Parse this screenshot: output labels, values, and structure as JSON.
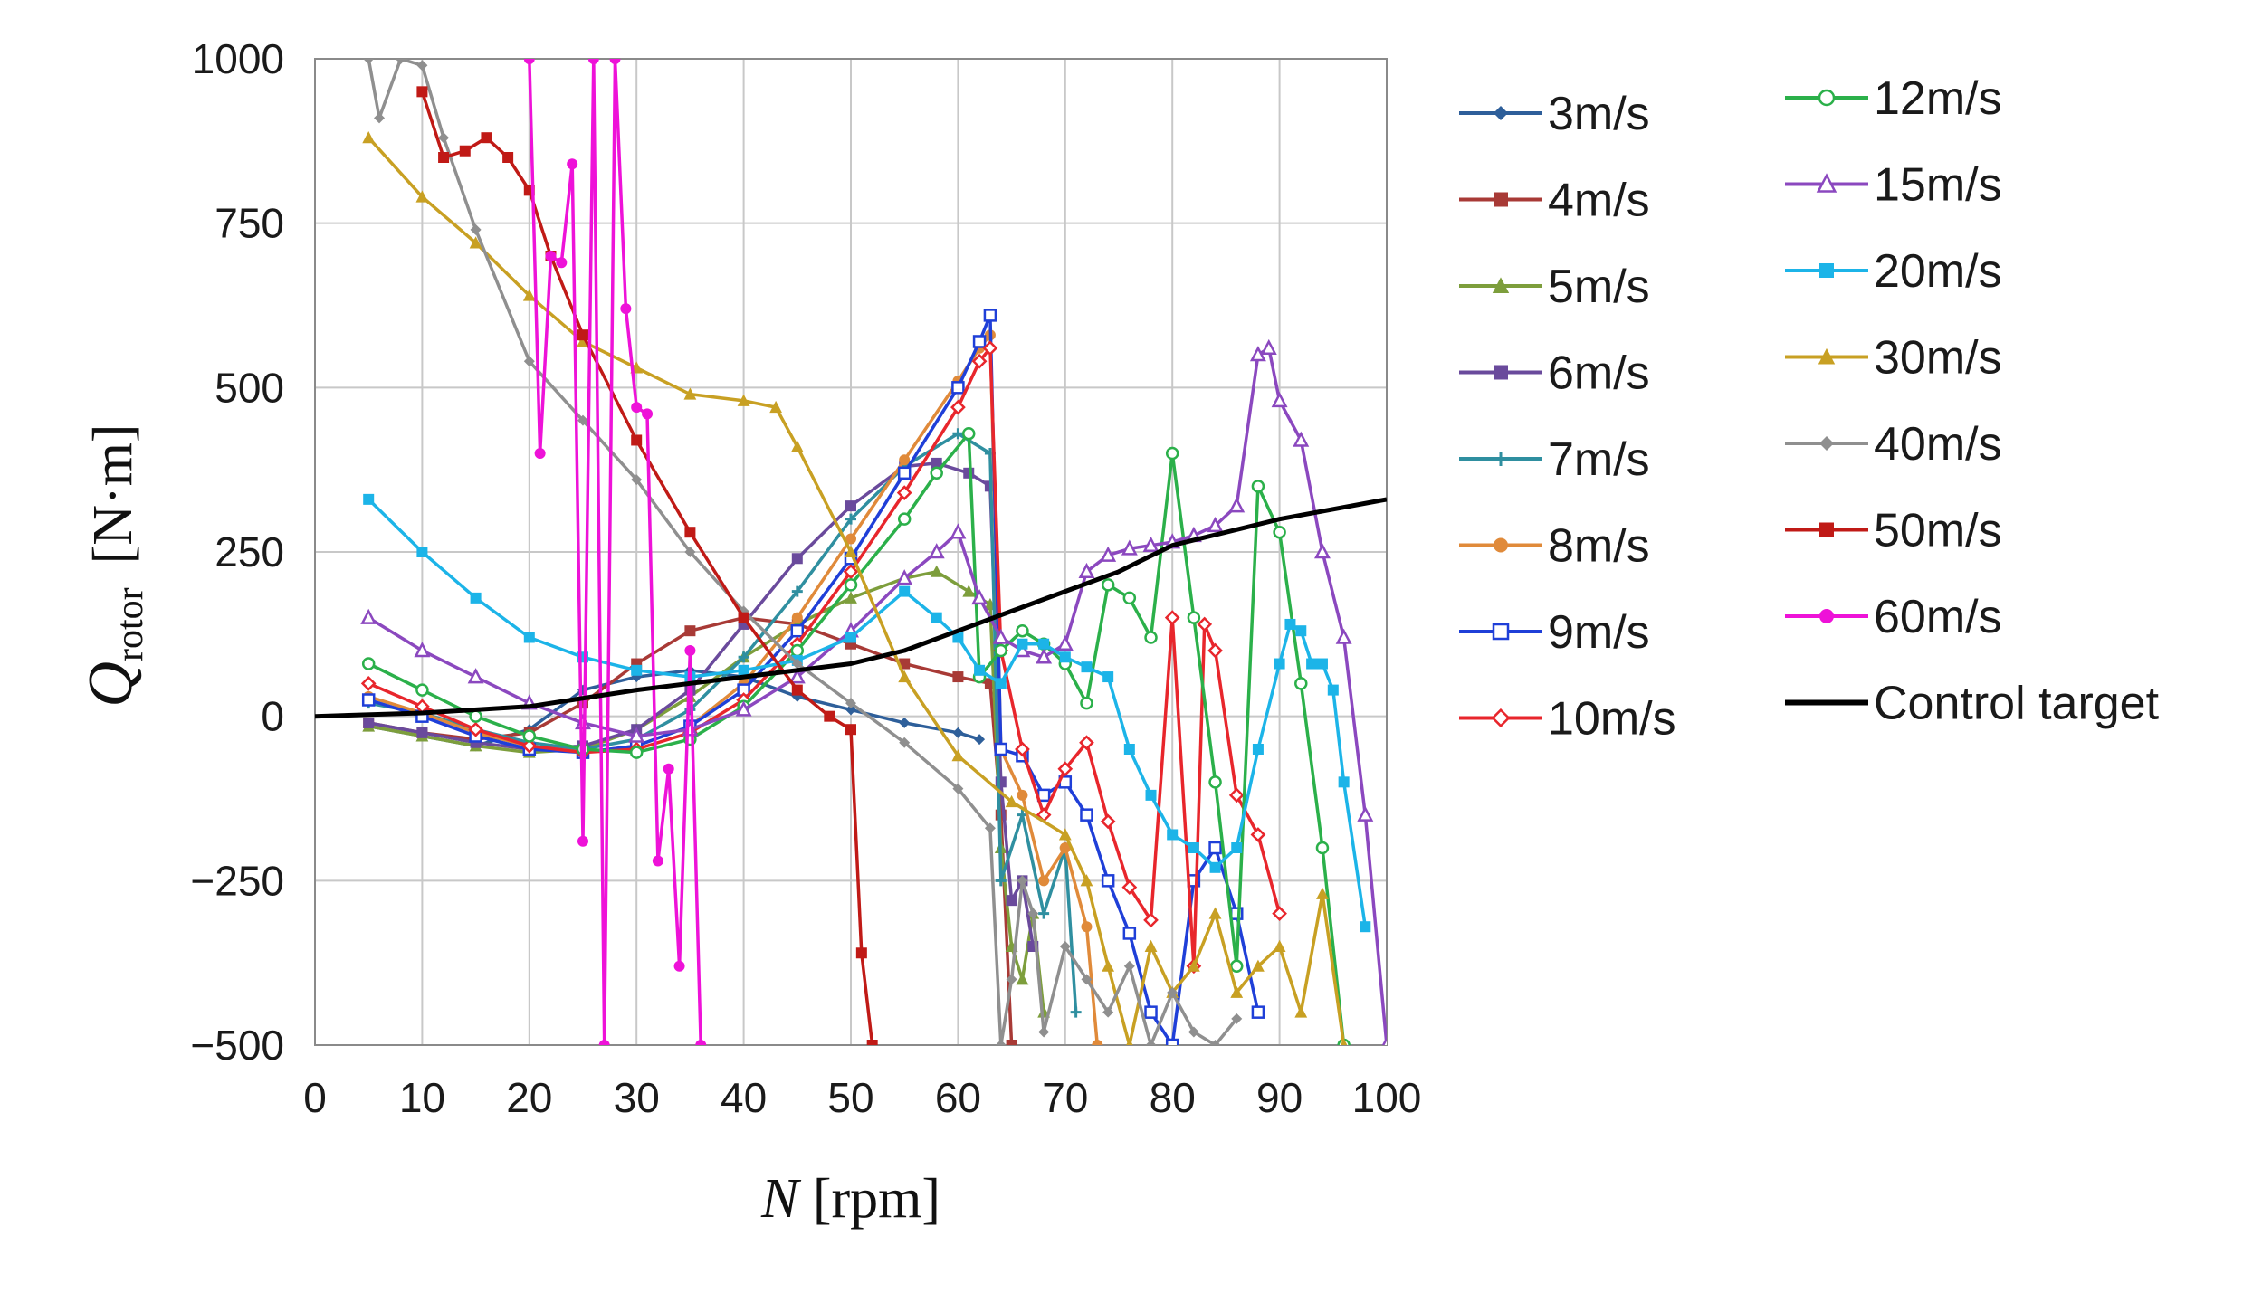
{
  "chart_data": {
    "type": "line",
    "title": "",
    "xlabel": "N [rpm]",
    "xlabel_var": "N",
    "xlabel_unit": " [rpm]",
    "ylabel": "Q_rotor [N·m]",
    "ylabel_var": "Q",
    "ylabel_sub": "rotor",
    "ylabel_unit": "[N·m]",
    "xlim": [
      0,
      100
    ],
    "ylim": [
      -500,
      1000
    ],
    "xticks": [
      0,
      10,
      20,
      30,
      40,
      50,
      60,
      70,
      80,
      90,
      100
    ],
    "yticks": [
      1000,
      750,
      500,
      250,
      0,
      -250,
      -500
    ],
    "ytick_labels": [
      "1000",
      "750",
      "500",
      "250",
      "0",
      "−250",
      "−500"
    ],
    "grid": true,
    "legend_position": "right",
    "series": [
      {
        "name": "3m/s",
        "color": "#2e5f9a",
        "marker": "diamond",
        "x": [
          5,
          10,
          15,
          20,
          25,
          30,
          35,
          40,
          45,
          50,
          55,
          60,
          62
        ],
        "y": [
          -15,
          -30,
          -45,
          -20,
          40,
          60,
          70,
          60,
          30,
          10,
          -10,
          -25,
          -35
        ]
      },
      {
        "name": "4m/s",
        "color": "#a83a36",
        "marker": "square",
        "x": [
          5,
          10,
          15,
          20,
          25,
          30,
          35,
          40,
          45,
          50,
          55,
          60,
          63,
          64,
          65
        ],
        "y": [
          -10,
          -25,
          -35,
          -25,
          20,
          80,
          130,
          150,
          140,
          110,
          80,
          60,
          50,
          -150,
          -500
        ]
      },
      {
        "name": "5m/s",
        "color": "#7d9e3c",
        "marker": "triangle",
        "x": [
          5,
          10,
          15,
          20,
          25,
          30,
          35,
          40,
          45,
          50,
          55,
          58,
          61,
          63,
          64,
          65,
          66,
          67,
          68
        ],
        "y": [
          -15,
          -30,
          -45,
          -55,
          -50,
          -20,
          30,
          90,
          140,
          180,
          210,
          220,
          190,
          170,
          -200,
          -350,
          -400,
          -300,
          -450
        ]
      },
      {
        "name": "6m/s",
        "color": "#6a4a9c",
        "marker": "square",
        "x": [
          5,
          10,
          15,
          20,
          25,
          30,
          35,
          40,
          45,
          50,
          55,
          58,
          61,
          63,
          64,
          65,
          66,
          67
        ],
        "y": [
          -10,
          -25,
          -40,
          -50,
          -45,
          -20,
          40,
          140,
          240,
          320,
          380,
          385,
          370,
          350,
          -100,
          -280,
          -250,
          -350
        ]
      },
      {
        "name": "7m/s",
        "color": "#2f8fa0",
        "marker": "plus",
        "x": [
          5,
          10,
          15,
          20,
          25,
          30,
          35,
          40,
          45,
          50,
          55,
          60,
          63,
          64,
          66,
          68,
          70,
          71
        ],
        "y": [
          20,
          5,
          -20,
          -40,
          -50,
          -35,
          10,
          90,
          190,
          300,
          380,
          430,
          400,
          -250,
          -150,
          -300,
          -200,
          -450
        ]
      },
      {
        "name": "8m/s",
        "color": "#e08a3a",
        "marker": "circle",
        "x": [
          5,
          10,
          15,
          20,
          25,
          30,
          35,
          40,
          45,
          50,
          55,
          60,
          62,
          63,
          64,
          66,
          68,
          70,
          72,
          73
        ],
        "y": [
          30,
          5,
          -25,
          -45,
          -55,
          -45,
          -15,
          50,
          150,
          270,
          390,
          510,
          560,
          580,
          -50,
          -120,
          -250,
          -200,
          -320,
          -500
        ]
      },
      {
        "name": "9m/s",
        "color": "#1f3fd8",
        "marker": "square-open",
        "x": [
          5,
          10,
          15,
          20,
          25,
          30,
          35,
          40,
          45,
          50,
          55,
          60,
          62,
          63,
          64,
          66,
          68,
          70,
          72,
          74,
          76,
          78,
          80,
          82,
          84,
          86,
          88
        ],
        "y": [
          25,
          0,
          -30,
          -50,
          -55,
          -45,
          -15,
          40,
          130,
          240,
          370,
          500,
          570,
          610,
          -50,
          -60,
          -120,
          -100,
          -150,
          -250,
          -330,
          -450,
          -500,
          -250,
          -200,
          -300,
          -450
        ]
      },
      {
        "name": "10m/s",
        "color": "#e8262c",
        "marker": "diamond-open",
        "x": [
          5,
          10,
          15,
          20,
          25,
          30,
          35,
          40,
          45,
          50,
          55,
          60,
          62,
          63,
          64,
          66,
          68,
          70,
          72,
          74,
          76,
          78,
          80,
          82,
          83,
          84,
          86,
          88,
          90
        ],
        "y": [
          50,
          15,
          -20,
          -45,
          -55,
          -50,
          -25,
          25,
          110,
          220,
          340,
          470,
          540,
          560,
          100,
          -50,
          -150,
          -80,
          -40,
          -160,
          -260,
          -310,
          150,
          -380,
          140,
          100,
          -120,
          -180,
          -300
        ]
      },
      {
        "name": "12m/s",
        "color": "#2bb04a",
        "marker": "circle-open",
        "x": [
          5,
          10,
          15,
          20,
          25,
          30,
          35,
          40,
          45,
          50,
          55,
          58,
          61,
          62,
          64,
          66,
          68,
          70,
          72,
          74,
          76,
          78,
          80,
          82,
          84,
          86,
          88,
          90,
          92,
          94,
          96
        ],
        "y": [
          80,
          40,
          0,
          -30,
          -50,
          -55,
          -35,
          15,
          100,
          200,
          300,
          370,
          430,
          60,
          100,
          130,
          110,
          80,
          20,
          200,
          180,
          120,
          400,
          150,
          -100,
          -380,
          350,
          280,
          50,
          -200,
          -500
        ]
      },
      {
        "name": "15m/s",
        "color": "#8b48bf",
        "marker": "triangle-open",
        "x": [
          5,
          10,
          15,
          20,
          25,
          30,
          35,
          40,
          45,
          50,
          55,
          58,
          60,
          62,
          64,
          66,
          68,
          70,
          72,
          74,
          76,
          78,
          80,
          82,
          84,
          86,
          88,
          89,
          90,
          92,
          94,
          96,
          98,
          100
        ],
        "y": [
          150,
          100,
          60,
          20,
          -10,
          -30,
          -20,
          10,
          60,
          130,
          210,
          250,
          280,
          180,
          120,
          100,
          90,
          110,
          220,
          245,
          255,
          260,
          265,
          275,
          290,
          320,
          550,
          560,
          480,
          420,
          250,
          120,
          -150,
          -500
        ]
      },
      {
        "name": "20m/s",
        "color": "#1cb4e8",
        "marker": "square",
        "x": [
          5,
          10,
          15,
          20,
          25,
          30,
          35,
          40,
          45,
          50,
          55,
          58,
          60,
          62,
          64,
          66,
          68,
          70,
          72,
          74,
          76,
          78,
          80,
          82,
          84,
          86,
          88,
          90,
          91,
          92,
          93,
          94,
          95,
          96,
          98
        ],
        "y": [
          330,
          250,
          180,
          120,
          90,
          70,
          60,
          70,
          85,
          120,
          190,
          150,
          120,
          70,
          50,
          110,
          110,
          90,
          75,
          60,
          -50,
          -120,
          -180,
          -200,
          -230,
          -200,
          -50,
          80,
          140,
          130,
          80,
          80,
          40,
          -100,
          -320
        ]
      },
      {
        "name": "30m/s",
        "color": "#c8a023",
        "marker": "triangle",
        "x": [
          5,
          10,
          15,
          20,
          25,
          30,
          35,
          40,
          43,
          45,
          50,
          55,
          60,
          65,
          70,
          72,
          74,
          76,
          78,
          80,
          82,
          84,
          86,
          88,
          90,
          92,
          94,
          96
        ],
        "y": [
          880,
          790,
          720,
          640,
          570,
          530,
          490,
          480,
          470,
          410,
          250,
          60,
          -60,
          -130,
          -180,
          -250,
          -380,
          -500,
          -350,
          -420,
          -380,
          -300,
          -420,
          -380,
          -350,
          -450,
          -270,
          -500
        ]
      },
      {
        "name": "40m/s",
        "color": "#8f8f8f",
        "marker": "diamond",
        "x": [
          5,
          6,
          8,
          10,
          12,
          15,
          20,
          25,
          30,
          35,
          40,
          45,
          50,
          55,
          60,
          63,
          64,
          65,
          66,
          67,
          68,
          70,
          72,
          74,
          76,
          78,
          80,
          82,
          84,
          86
        ],
        "y": [
          1000,
          910,
          1000,
          990,
          880,
          740,
          540,
          450,
          360,
          250,
          160,
          80,
          20,
          -40,
          -110,
          -170,
          -500,
          -400,
          -250,
          -300,
          -480,
          -350,
          -400,
          -450,
          -380,
          -500,
          -420,
          -480,
          -500,
          -460
        ]
      },
      {
        "name": "50m/s",
        "color": "#c01a16",
        "marker": "square",
        "x": [
          10,
          12,
          14,
          16,
          18,
          20,
          22,
          25,
          30,
          35,
          40,
          45,
          48,
          50,
          51,
          52
        ],
        "y": [
          950,
          850,
          860,
          880,
          850,
          800,
          700,
          580,
          420,
          280,
          150,
          40,
          0,
          -20,
          -360,
          -500
        ]
      },
      {
        "name": "60m/s",
        "color": "#ee12d8",
        "marker": "circle",
        "x": [
          20,
          21,
          22,
          23,
          24,
          25,
          26,
          27,
          28,
          29,
          30,
          31,
          32,
          33,
          34,
          35,
          36
        ],
        "y": [
          1000,
          400,
          700,
          690,
          840,
          -190,
          1000,
          -500,
          1000,
          620,
          470,
          460,
          -220,
          -80,
          -380,
          100,
          -500
        ]
      },
      {
        "name": "Control target",
        "color": "#000000",
        "marker": "none",
        "x": [
          0,
          10,
          20,
          30,
          40,
          50,
          55,
          60,
          65,
          70,
          75,
          80,
          90,
          100
        ],
        "y": [
          0,
          5,
          15,
          40,
          60,
          80,
          100,
          130,
          160,
          190,
          220,
          260,
          300,
          330
        ]
      }
    ]
  }
}
